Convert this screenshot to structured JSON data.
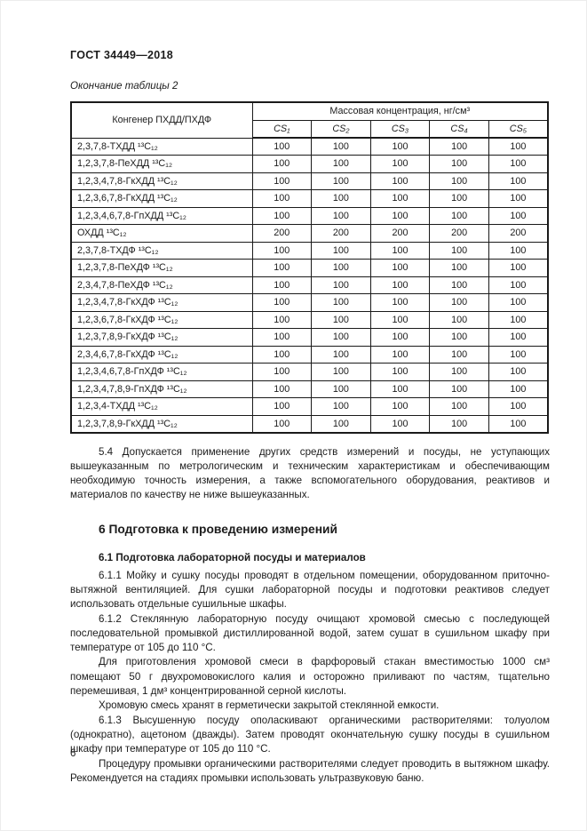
{
  "page": {
    "doc_number": "ГОСТ 34449—2018",
    "table_caption": "Окончание таблицы 2",
    "page_number": "6"
  },
  "table": {
    "col1_header": "Конгенер ПХДД/ПХДФ",
    "group_header": "Массовая концентрация, нг/см³",
    "cs_headers": [
      "CS₁",
      "CS₂",
      "CS₃",
      "CS₄",
      "CS₅"
    ],
    "rows": [
      {
        "name": "2,3,7,8-ТХДД ¹³C₁₂",
        "values": [
          "100",
          "100",
          "100",
          "100",
          "100"
        ]
      },
      {
        "name": "1,2,3,7,8-ПеХДД ¹³C₁₂",
        "values": [
          "100",
          "100",
          "100",
          "100",
          "100"
        ]
      },
      {
        "name": "1,2,3,4,7,8-ГкХДД ¹³C₁₂",
        "values": [
          "100",
          "100",
          "100",
          "100",
          "100"
        ]
      },
      {
        "name": "1,2,3,6,7,8-ГкХДД ¹³C₁₂",
        "values": [
          "100",
          "100",
          "100",
          "100",
          "100"
        ]
      },
      {
        "name": "1,2,3,4,6,7,8-ГпХДД ¹³C₁₂",
        "values": [
          "100",
          "100",
          "100",
          "100",
          "100"
        ]
      },
      {
        "name": "ОХДД ¹³C₁₂",
        "values": [
          "200",
          "200",
          "200",
          "200",
          "200"
        ]
      },
      {
        "name": "2,3,7,8-ТХДФ ¹³C₁₂",
        "values": [
          "100",
          "100",
          "100",
          "100",
          "100"
        ]
      },
      {
        "name": "1,2,3,7,8-ПеХДФ ¹³C₁₂",
        "values": [
          "100",
          "100",
          "100",
          "100",
          "100"
        ]
      },
      {
        "name": "2,3,4,7,8-ПеХДФ ¹³C₁₂",
        "values": [
          "100",
          "100",
          "100",
          "100",
          "100"
        ]
      },
      {
        "name": "1,2,3,4,7,8-ГкХДФ ¹³C₁₂",
        "values": [
          "100",
          "100",
          "100",
          "100",
          "100"
        ]
      },
      {
        "name": "1,2,3,6,7,8-ГкХДФ ¹³C₁₂",
        "values": [
          "100",
          "100",
          "100",
          "100",
          "100"
        ]
      },
      {
        "name": "1,2,3,7,8,9-ГкХДФ ¹³C₁₂",
        "values": [
          "100",
          "100",
          "100",
          "100",
          "100"
        ]
      },
      {
        "name": "2,3,4,6,7,8-ГкХДФ ¹³C₁₂",
        "values": [
          "100",
          "100",
          "100",
          "100",
          "100"
        ]
      },
      {
        "name": "1,2,3,4,6,7,8-ГпХДФ ¹³C₁₂",
        "values": [
          "100",
          "100",
          "100",
          "100",
          "100"
        ]
      },
      {
        "name": "1,2,3,4,7,8,9-ГпХДФ ¹³C₁₂",
        "values": [
          "100",
          "100",
          "100",
          "100",
          "100"
        ]
      },
      {
        "name": "1,2,3,4-ТХДД ¹³C₁₂",
        "values": [
          "100",
          "100",
          "100",
          "100",
          "100"
        ]
      },
      {
        "name": "1,2,3,7,8,9-ГкХДД ¹³C₁₂",
        "values": [
          "100",
          "100",
          "100",
          "100",
          "100"
        ]
      }
    ]
  },
  "sections": {
    "p54": "5.4 Допускается применение других средств измерений и посуды, не уступающих вышеуказанным по метрологическим и техническим характеристикам и обеспечивающим необходимую точность измерения, а также вспомогательного оборудования, реактивов и материалов по качеству не ниже вышеуказанных.",
    "h6": "6 Подготовка к проведению измерений",
    "h61": "6.1 Подготовка лабораторной посуды и материалов",
    "paragraphs": [
      "6.1.1 Мойку и сушку посуды проводят в отдельном помещении, оборудованном приточно-вытяжной вентиляцией. Для сушки лабораторной посуды и подготовки реактивов следует использовать отдельные сушильные шкафы.",
      "6.1.2 Стеклянную лабораторную посуду очищают хромовой смесью с последующей последовательной промывкой дистиллированной водой, затем сушат в сушильном шкафу при температуре от 105 до 110 °С.",
      "Для приготовления хромовой смеси в фарфоровый стакан вместимостью 1000 см³ помещают 50 г двухромовокислого калия и осторожно приливают по частям, тщательно перемешивая, 1 дм³ концентрированной серной кислоты.",
      "Хромовую смесь хранят в герметически закрытой стеклянной емкости.",
      "6.1.3 Высушенную посуду ополаскивают органическими растворителями: толуолом (однократно), ацетоном (дважды). Затем проводят окончательную сушку посуды в сушильном шкафу при температуре от 105 до 110 °С.",
      "Процедуру промывки органическими растворителями следует проводить в вытяжном шкафу. Рекомендуется на стадиях промывки использовать ультразвуковую баню."
    ]
  }
}
